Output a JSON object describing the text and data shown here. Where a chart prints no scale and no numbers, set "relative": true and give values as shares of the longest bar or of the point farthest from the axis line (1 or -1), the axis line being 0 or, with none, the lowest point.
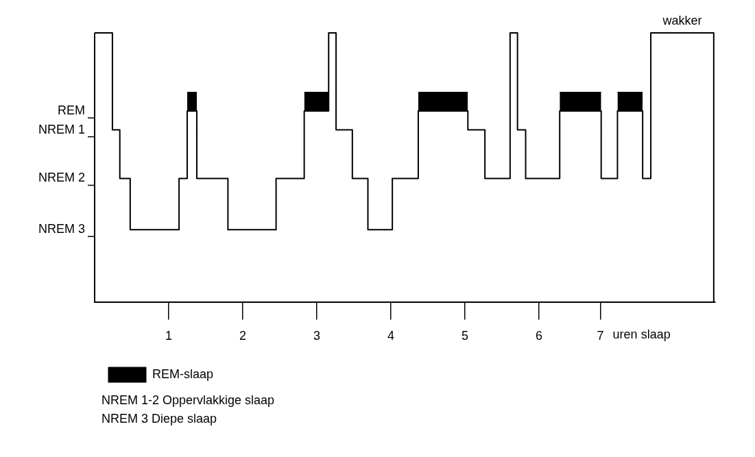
{
  "chart_data": {
    "type": "step",
    "xlabel": "uren slaap",
    "relative": true,
    "xlim": [
      0,
      8.38
    ],
    "xticks": [
      1,
      2,
      3,
      4,
      5,
      6,
      {
        "value": 6.83,
        "label": "7"
      }
    ],
    "legend": "bottom left",
    "series": [
      {
        "color": "#000000",
        "x": [
          0,
          0.24,
          0.34,
          0.48,
          1.14,
          1.25,
          1.38,
          1.8,
          2.45,
          2.83,
          3.16,
          3.26,
          3.48,
          3.69,
          4.02,
          4.37,
          5.04,
          5.27,
          5.61,
          5.71,
          5.82,
          6.28,
          6.84,
          7.06,
          7.4,
          7.51,
          8.36
        ],
        "values": [
          1,
          0.64,
          0.46,
          0.27,
          0.46,
          0.71,
          0.46,
          0.27,
          0.46,
          0.71,
          1,
          0.64,
          0.46,
          0.27,
          0.46,
          0.71,
          0.64,
          0.46,
          1,
          0.64,
          0.46,
          0.71,
          0.46,
          0.71,
          0.46,
          1,
          0
        ]
      },
      {
        "type": "area",
        "name": "REM-slaap",
        "color": "#000000",
        "x": [
          1.25,
          1.38
        ],
        "values": [
          0.78,
          0.78
        ]
      },
      {
        "type": "area",
        "color": "#000000",
        "x": [
          2.83,
          3.16
        ],
        "values": [
          0.78,
          0.78
        ]
      },
      {
        "type": "area",
        "color": "#000000",
        "x": [
          4.37,
          5.04
        ],
        "values": [
          0.78,
          0.78
        ]
      },
      {
        "type": "area",
        "color": "#000000",
        "x": [
          6.28,
          6.84
        ],
        "values": [
          0.78,
          0.78
        ]
      },
      {
        "type": "area",
        "color": "#000000",
        "x": [
          7.06,
          7.4
        ],
        "values": [
          0.78,
          0.78
        ]
      }
    ],
    "annotations": [
      "wakker",
      "REM",
      "NREM 1",
      "NREM 2",
      "NREM 3",
      "NREM 1-2 Oppervlakkige slaap",
      "NREM 3 Diepe slaap"
    ]
  }
}
